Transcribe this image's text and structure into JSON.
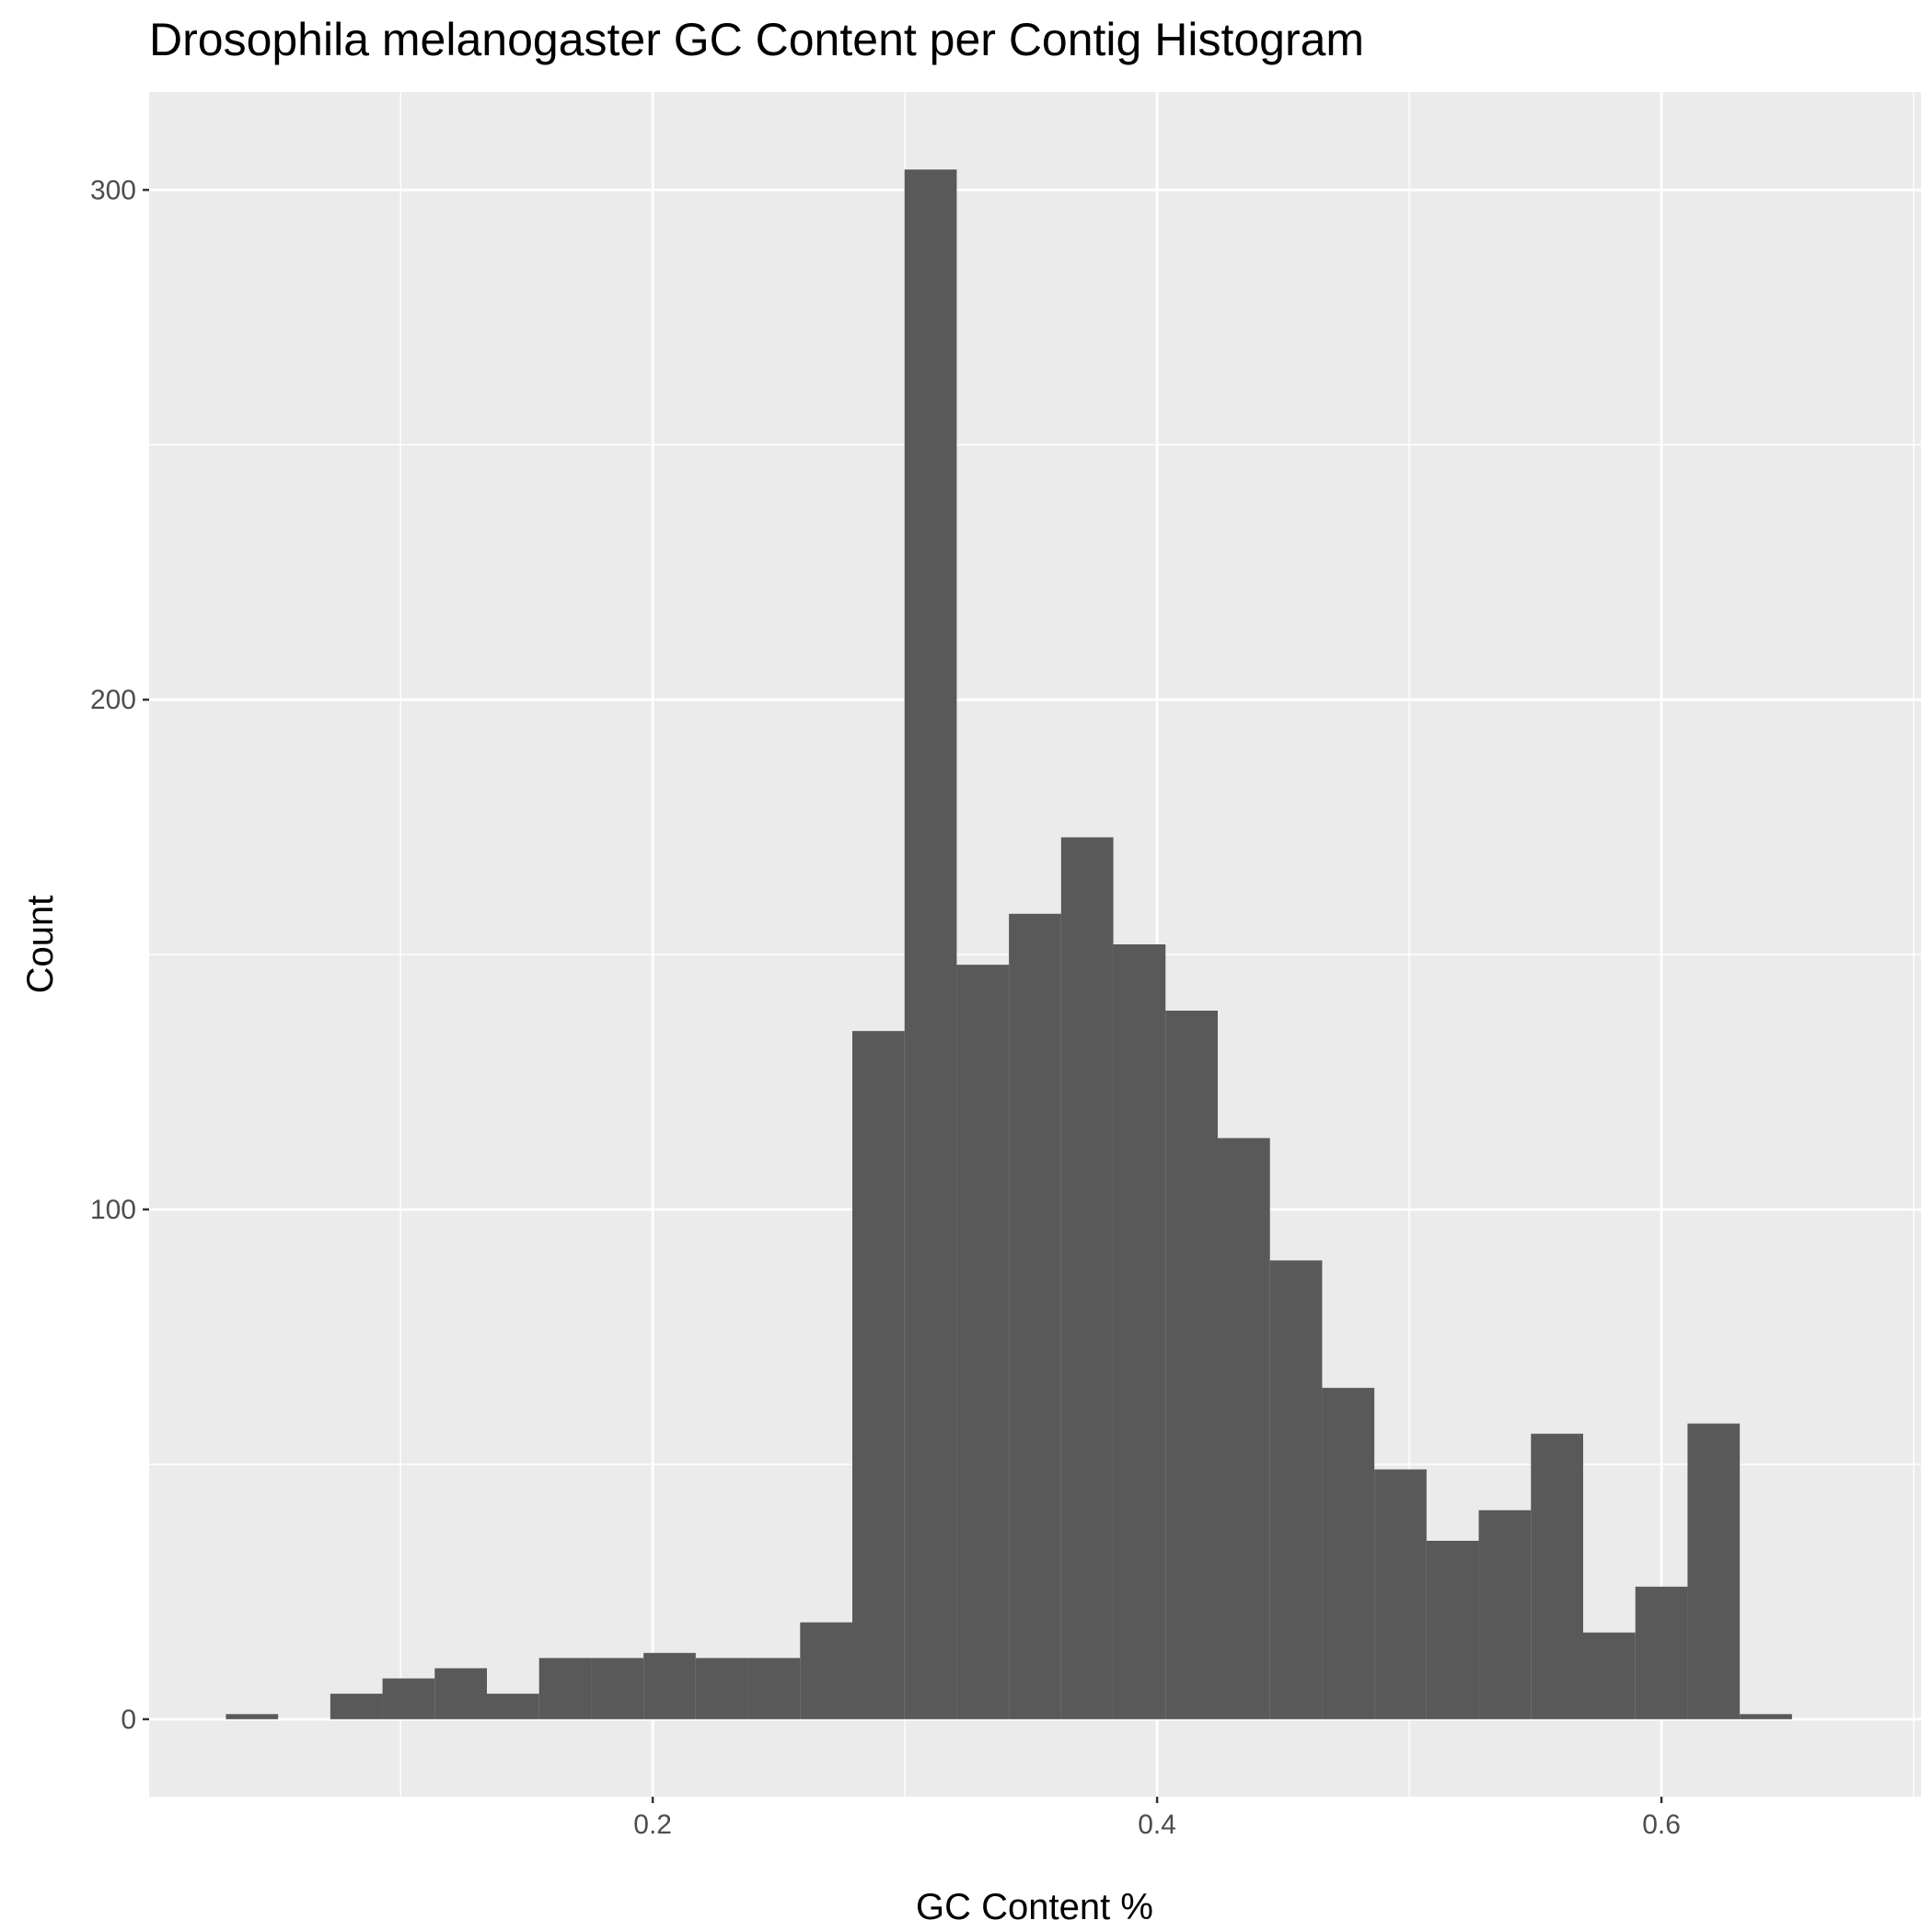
{
  "chart_data": {
    "type": "bar",
    "title": "Drosophila melanogaster GC Content per Contig Histogram",
    "xlabel": "GC Content %",
    "ylabel": "Count",
    "bin_width": 0.0207,
    "first_bin_center": 0.0411,
    "values": [
      1,
      0,
      5,
      8,
      10,
      5,
      12,
      12,
      13,
      12,
      12,
      19,
      135,
      304,
      148,
      158,
      173,
      152,
      139,
      114,
      90,
      65,
      49,
      35,
      41,
      56,
      17,
      26,
      58,
      1
    ],
    "x_ticks": [
      0.2,
      0.4,
      0.6
    ],
    "x_tick_labels": [
      "0.2",
      "0.4",
      "0.6"
    ],
    "y_ticks": [
      0,
      100,
      200,
      300
    ],
    "y_tick_labels": [
      "0",
      "100",
      "200",
      "300"
    ],
    "xlim": [
      0.0003,
      0.7029
    ],
    "ylim": [
      -15.2,
      319.2
    ],
    "grid": true,
    "colors": {
      "bar": "#595959",
      "panel_background": "#ebebeb",
      "grid": "#ffffff"
    }
  }
}
